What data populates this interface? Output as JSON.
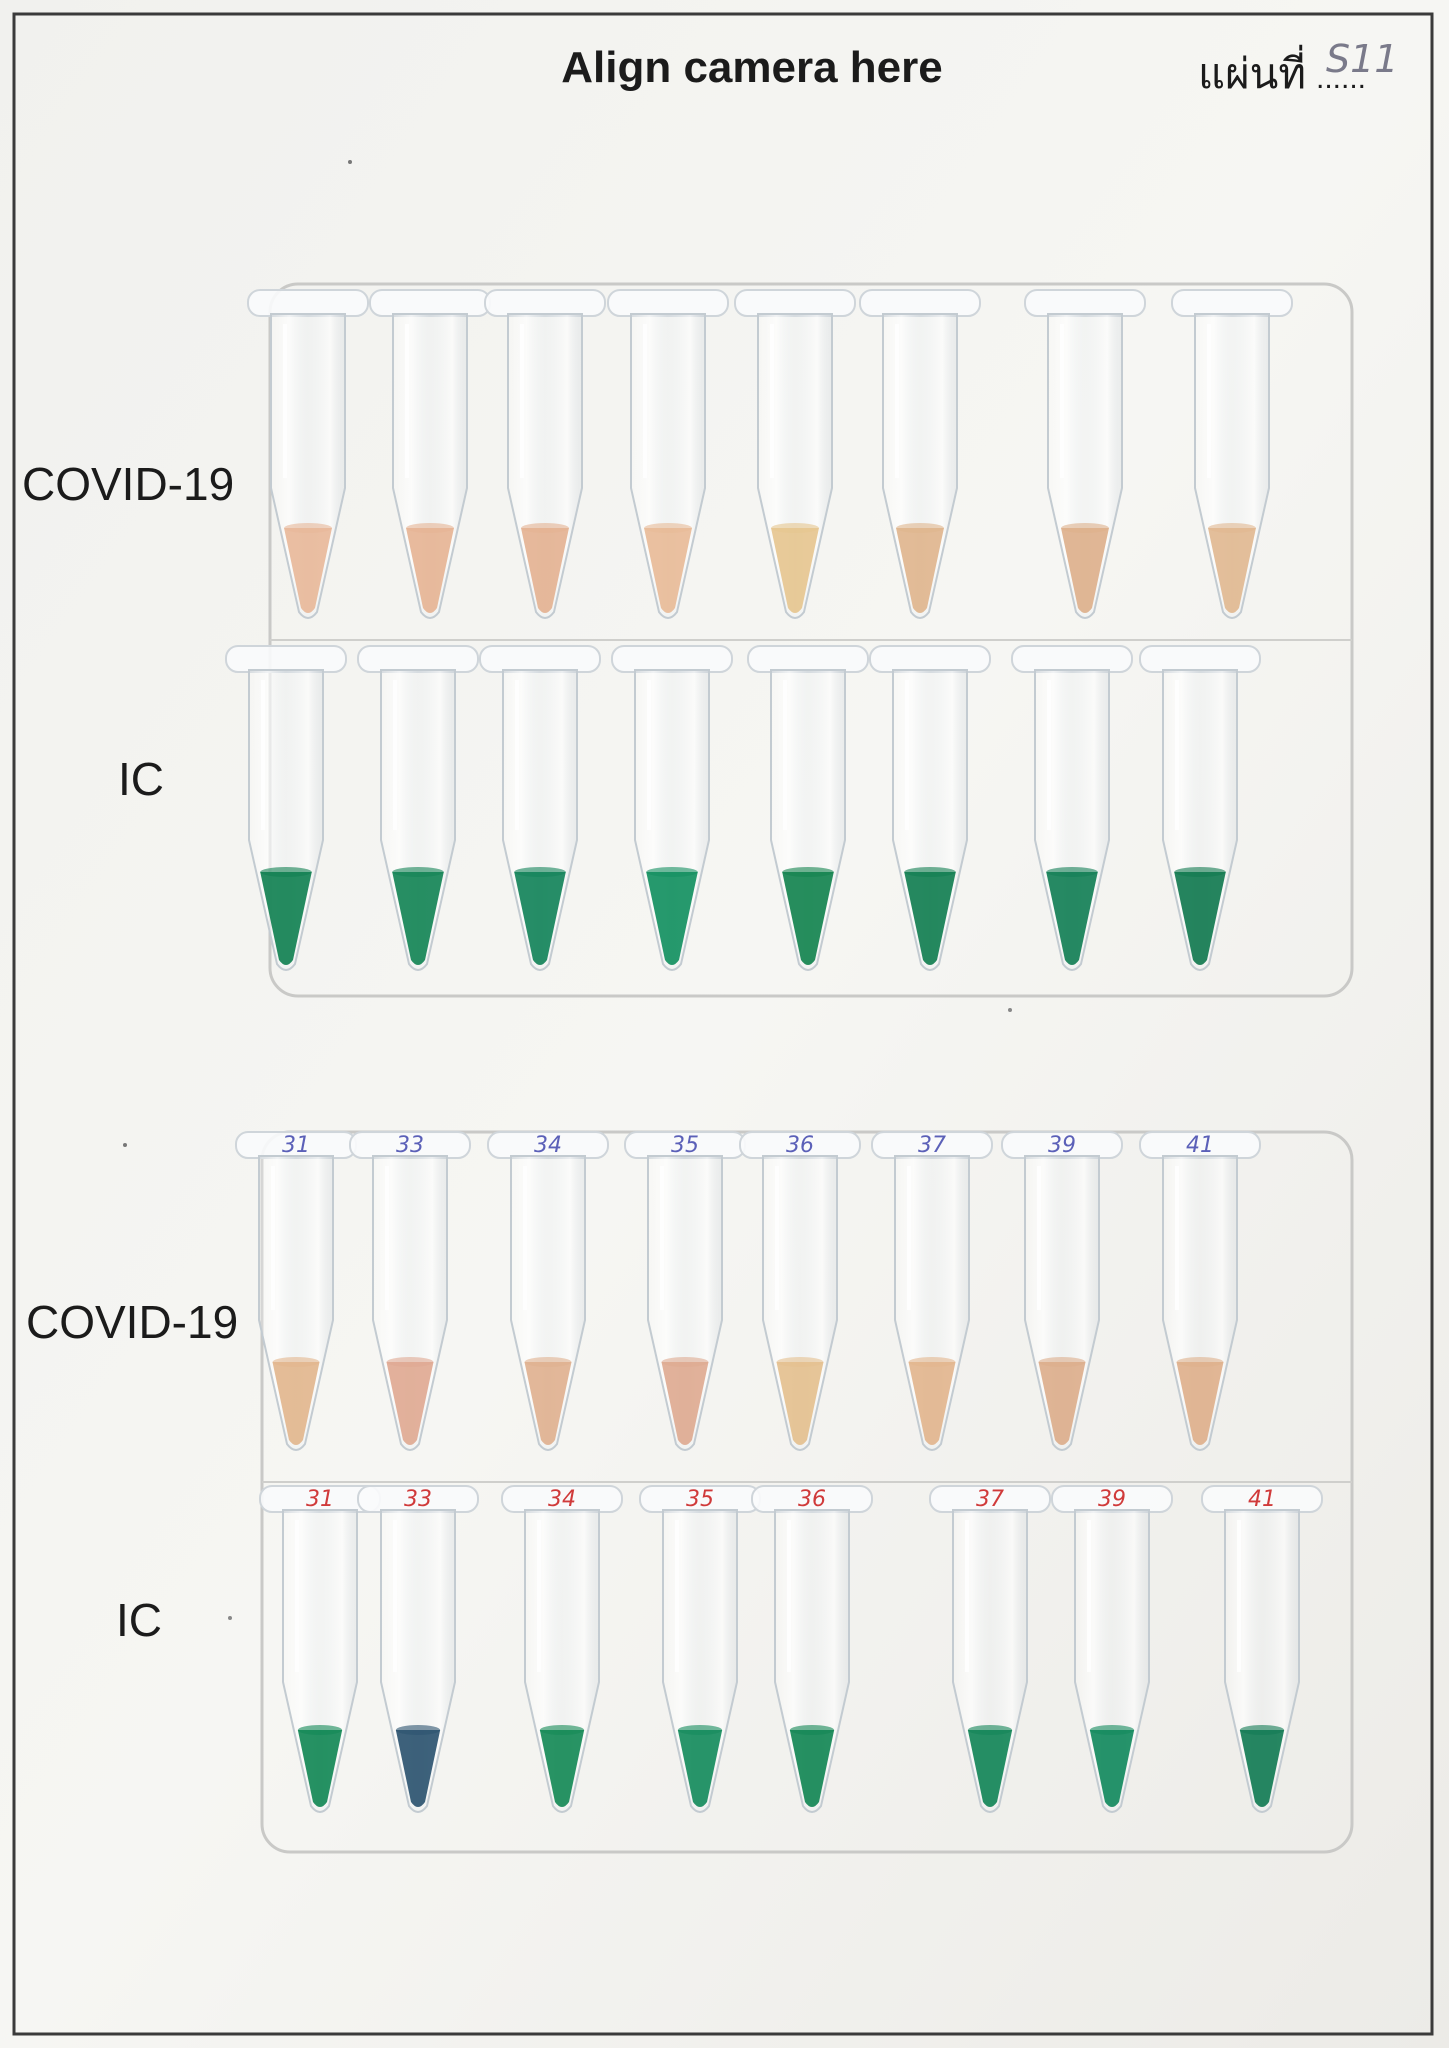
{
  "sheet": {
    "header": "Align camera here",
    "sheet_number_label": "แผ่นที่",
    "sheet_number_dots": "......",
    "sheet_number_handwritten": "S11"
  },
  "panels": [
    {
      "covid_label": "COVID-19",
      "ic_label": "IC",
      "covid_tube_notes": [
        "",
        "",
        "",
        "",
        "",
        "",
        "",
        ""
      ],
      "ic_tube_notes": [
        "",
        "",
        "",
        "",
        "",
        "",
        "",
        ""
      ],
      "covid_colors": [
        "#e8b89a",
        "#e6b495",
        "#e4b293",
        "#e8bb98",
        "#e6c690",
        "#dfb58e",
        "#ddb08c",
        "#e1b891"
      ],
      "ic_colors": [
        "#128152",
        "#158456",
        "#14835a",
        "#149061",
        "#14834f",
        "#127e51",
        "#147f56",
        "#127a50"
      ]
    },
    {
      "covid_label": "COVID-19",
      "ic_label": "IC",
      "covid_tube_notes": [
        "31",
        "33",
        "34",
        "35",
        "36",
        "37",
        "39",
        "41"
      ],
      "ic_tube_notes": [
        "31",
        "33",
        "34",
        "35",
        "36",
        "37",
        "39",
        "41"
      ],
      "covid_colors": [
        "#e2b68e",
        "#dfa993",
        "#e0b190",
        "#deaa91",
        "#e4c08f",
        "#e2b58e",
        "#dcae8c",
        "#deb08c"
      ],
      "ic_colors": [
        "#138856",
        "#2d5470",
        "#168a57",
        "#168c5d",
        "#148755",
        "#148558",
        "#148a5e",
        "#147c55"
      ]
    }
  ]
}
